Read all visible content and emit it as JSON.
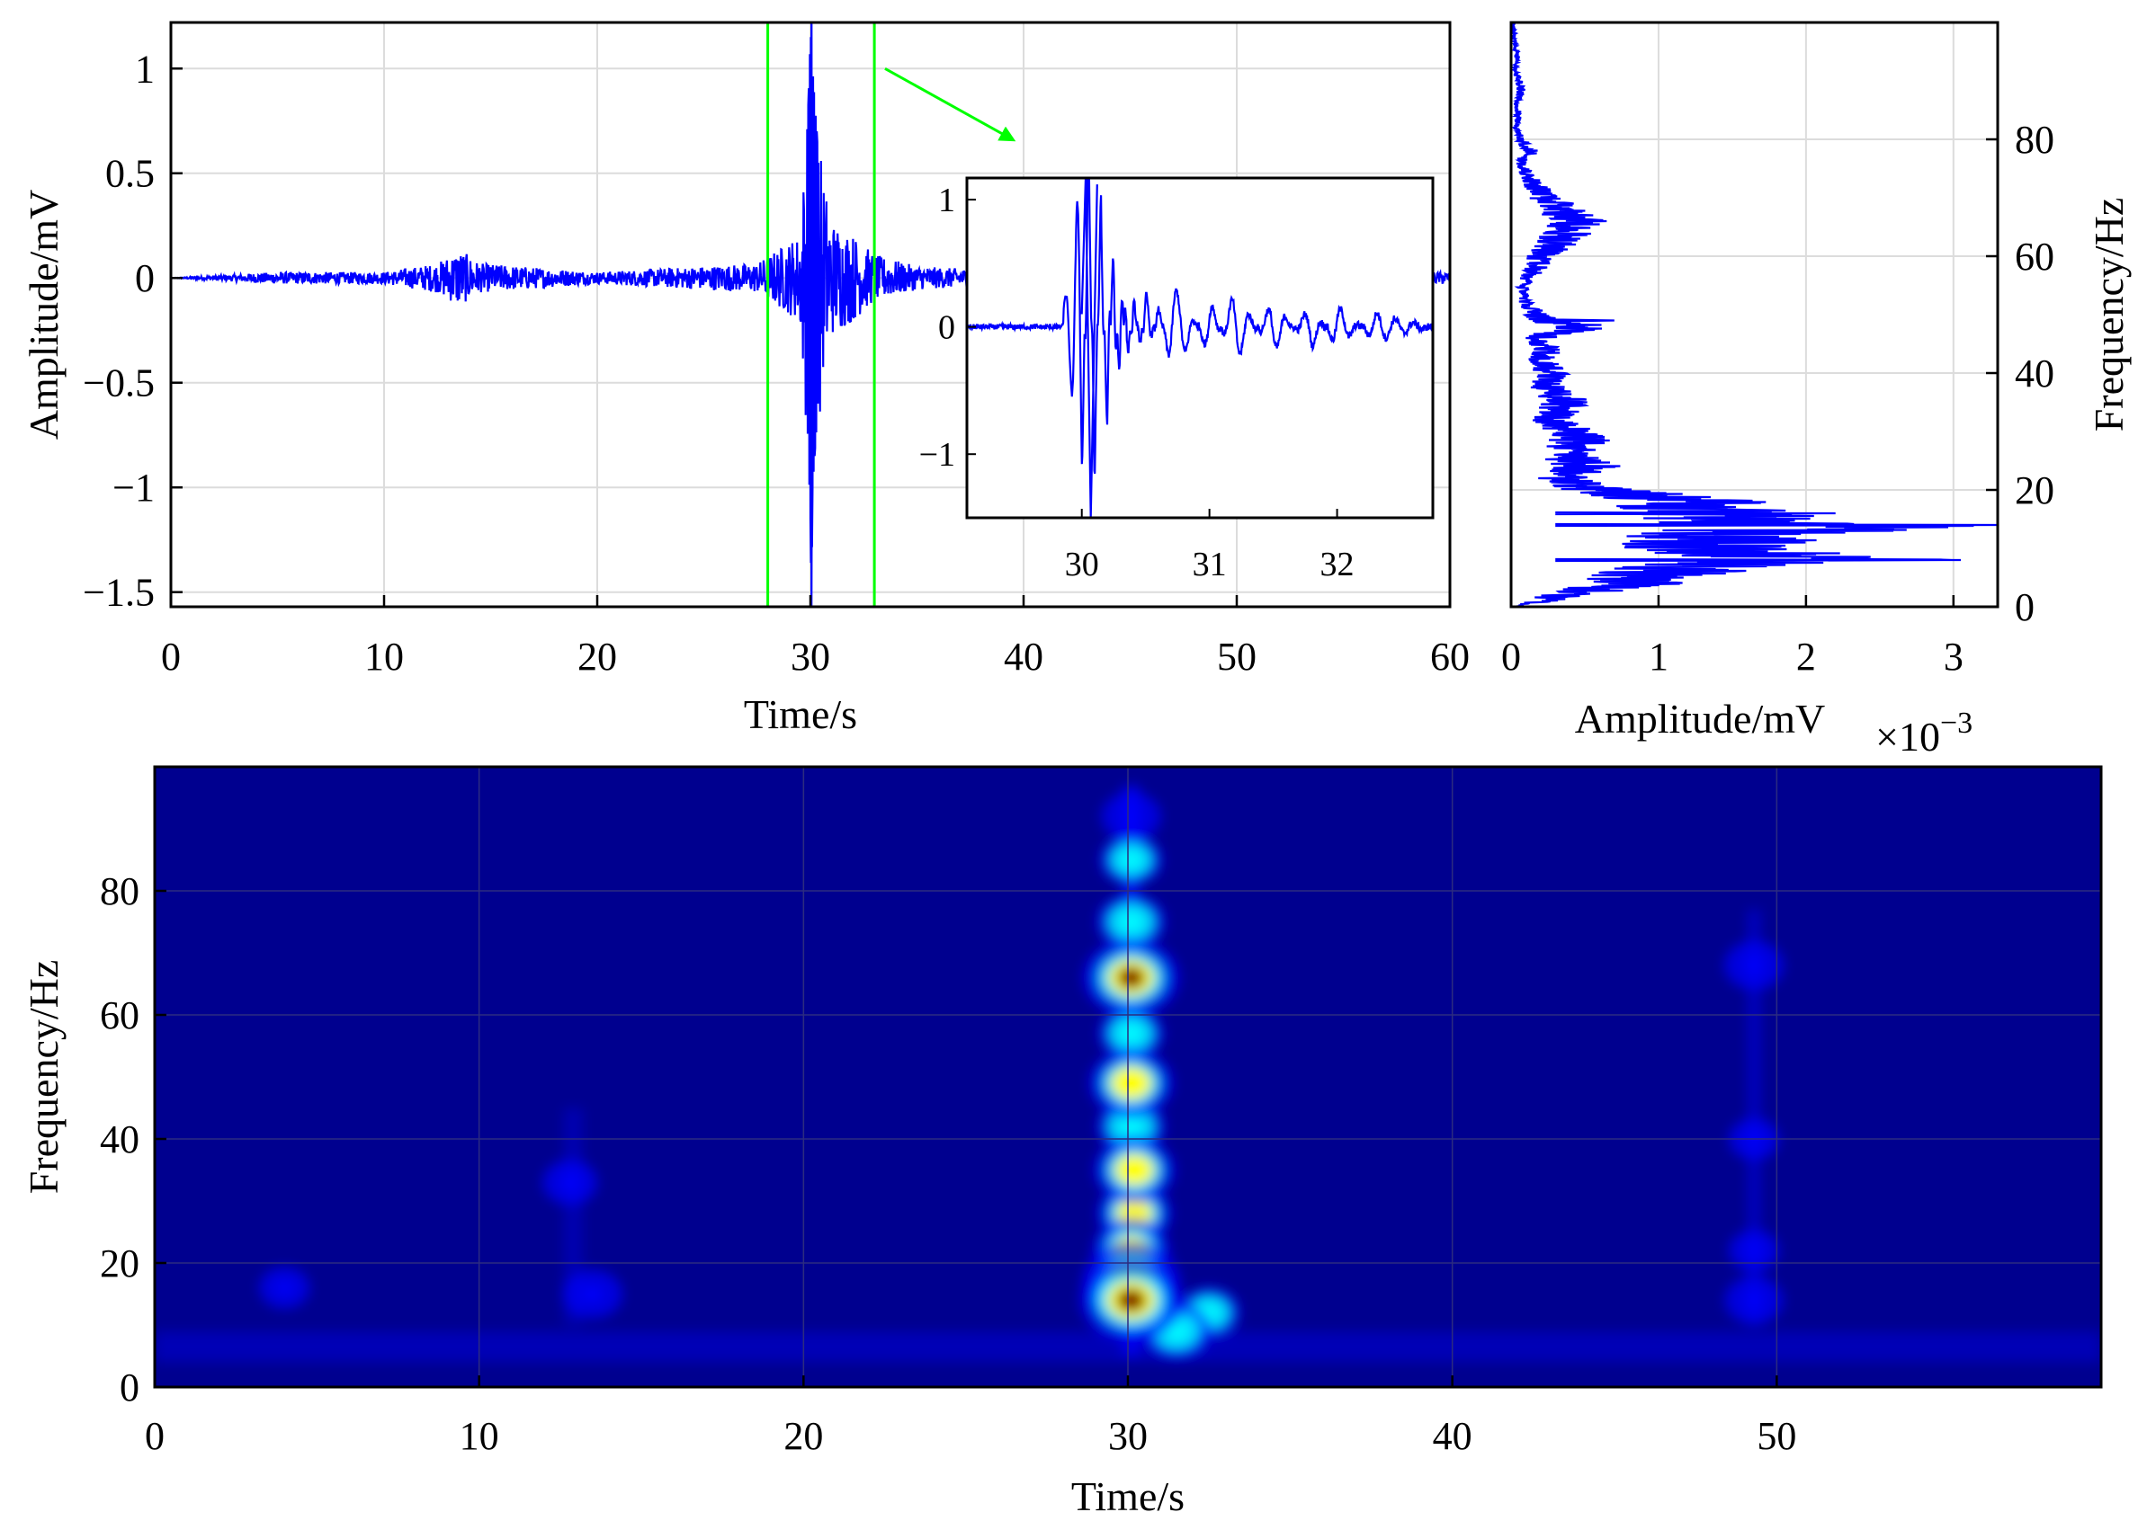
{
  "colors": {
    "signal": "#0000ff",
    "highlight": "#00ff00",
    "spectrogram_background": "#00008f",
    "colormap": [
      "#00008f",
      "#0000ff",
      "#00ffff",
      "#ffff00",
      "#ff0000",
      "#800000"
    ]
  },
  "chart_data": [
    {
      "id": "time-domain",
      "type": "line",
      "xlabel": "Time/s",
      "ylabel": "Amplitude/mV",
      "xlim": [
        0,
        60
      ],
      "ylim": [
        -1.57,
        1.22
      ],
      "xticks": [
        "0",
        "10",
        "20",
        "30",
        "40",
        "50",
        "60"
      ],
      "yticks": [
        "1",
        "0.5",
        "0",
        "−0.5",
        "−1",
        "−1.5"
      ],
      "grid": true,
      "series": [
        {
          "x": [
            0,
            5,
            10,
            12.5,
            13.5,
            14.5,
            20,
            27.5,
            29.5,
            29.8,
            30.0,
            30.05,
            30.1,
            30.2,
            30.3,
            30.4,
            30.6,
            31,
            32,
            33,
            35,
            40,
            45,
            50,
            55,
            60
          ],
          "y": [
            0,
            0.02,
            0.02,
            0.05,
            0.1,
            0.05,
            0.02,
            0.05,
            0.15,
            0.5,
            1.15,
            -1.57,
            1.0,
            -0.85,
            0.7,
            -0.5,
            0.35,
            0.2,
            0.15,
            0.08,
            0.04,
            0.02,
            0.02,
            0.03,
            0.02,
            0.02
          ]
        }
      ],
      "annotations": [
        {
          "kind": "highlight-rectangle",
          "x_range": [
            28,
            33
          ],
          "y_range": [
            -1.57,
            1.22
          ]
        },
        {
          "kind": "arrow",
          "from": [
            33.5,
            1.0
          ],
          "to": [
            39.5,
            0.66
          ]
        }
      ]
    },
    {
      "id": "zoom-inset",
      "type": "line",
      "xlim": [
        29.1,
        32.75
      ],
      "ylim": [
        -1.5,
        1.17
      ],
      "xticks": [
        "30",
        "31",
        "32"
      ],
      "yticks": [
        "1",
        "0",
        "−1"
      ],
      "grid": false,
      "series": [
        {
          "x": [
            29.1,
            29.5,
            29.8,
            29.9,
            30.0,
            30.05,
            30.1,
            30.15,
            30.2,
            30.25,
            30.3,
            30.35,
            30.4,
            30.45,
            30.5,
            30.6,
            30.7,
            30.8,
            31.0,
            31.2,
            31.5,
            31.8,
            32.0,
            32.3,
            32.5,
            32.75
          ],
          "y": [
            0,
            0,
            0.05,
            0.3,
            1.2,
            -1.5,
            1.15,
            -1.0,
            0.85,
            -0.75,
            0.6,
            -0.4,
            0.3,
            -0.2,
            0.25,
            -0.15,
            0.3,
            0.2,
            -0.2,
            0.25,
            -0.18,
            0.15,
            -0.15,
            0.1,
            0.05,
            0
          ]
        }
      ]
    },
    {
      "id": "spectrum",
      "type": "line",
      "xlabel": "Amplitude/mV",
      "ylabel": "Frequency/Hz",
      "x_multiplier": "×10",
      "x_multiplier_exponent": "−3",
      "xlim": [
        0,
        3.3
      ],
      "ylim": [
        0,
        100
      ],
      "xticks": [
        "0",
        "1",
        "2",
        "3"
      ],
      "yticks": [
        "0",
        "20",
        "40",
        "60",
        "80"
      ],
      "grid": true,
      "series": [
        {
          "y": [
            0,
            2,
            4,
            6,
            7,
            8,
            10,
            12,
            13,
            14,
            15,
            16,
            17,
            18,
            20,
            22,
            24,
            26,
            28,
            30,
            32,
            35,
            38,
            40,
            42,
            44,
            46,
            48,
            49,
            50,
            52,
            55,
            58,
            60,
            62,
            64,
            66,
            67,
            68,
            70,
            72,
            74,
            76,
            78,
            80,
            82,
            84,
            86,
            88,
            90,
            92,
            94,
            96,
            98,
            100
          ],
          "x": [
            0.05,
            0.55,
            1.2,
            1.6,
            1.8,
            3.05,
            1.8,
            2.2,
            2.6,
            3.3,
            2.3,
            1.85,
            1.9,
            1.75,
            0.9,
            0.5,
            0.75,
            0.55,
            0.7,
            0.6,
            0.4,
            0.55,
            0.35,
            0.45,
            0.3,
            0.35,
            0.28,
            0.7,
            0.35,
            0.25,
            0.15,
            0.12,
            0.25,
            0.3,
            0.45,
            0.55,
            0.65,
            0.6,
            0.5,
            0.35,
            0.25,
            0.15,
            0.1,
            0.2,
            0.1,
            0.05,
            0.08,
            0.05,
            0.1,
            0.08,
            0.04,
            0.06,
            0.04,
            0.03,
            0.02
          ]
        }
      ]
    },
    {
      "id": "spectrogram",
      "type": "heatmap",
      "xlabel": "Time/s",
      "ylabel": "Frequency/Hz",
      "xlim": [
        0,
        60
      ],
      "ylim": [
        0,
        100
      ],
      "xticks": [
        "0",
        "10",
        "20",
        "30",
        "40",
        "50"
      ],
      "yticks": [
        "0",
        "20",
        "40",
        "60",
        "80"
      ],
      "hotspots": [
        {
          "t": 30.1,
          "f": 14,
          "level": 1.0
        },
        {
          "t": 30.1,
          "f": 17,
          "level": 0.92
        },
        {
          "t": 30.1,
          "f": 66,
          "level": 0.9
        },
        {
          "t": 30.1,
          "f": 49,
          "level": 0.7
        },
        {
          "t": 30.2,
          "f": 35,
          "level": 0.65
        },
        {
          "t": 30.2,
          "f": 28,
          "level": 0.55
        },
        {
          "t": 30.1,
          "f": 22,
          "level": 0.6
        },
        {
          "t": 30.1,
          "f": 75,
          "level": 0.45
        },
        {
          "t": 30.1,
          "f": 85,
          "level": 0.35
        },
        {
          "t": 30.1,
          "f": 92,
          "level": 0.3
        },
        {
          "t": 30.1,
          "f": 57,
          "level": 0.4
        },
        {
          "t": 30.1,
          "f": 42,
          "level": 0.45
        },
        {
          "t": 31.5,
          "f": 9,
          "level": 0.45
        },
        {
          "t": 32.5,
          "f": 12,
          "level": 0.35
        },
        {
          "t": 13.5,
          "f": 15,
          "level": 0.3
        },
        {
          "t": 12.8,
          "f": 33,
          "level": 0.22
        },
        {
          "t": 49.3,
          "f": 68,
          "level": 0.3
        },
        {
          "t": 49.3,
          "f": 14,
          "level": 0.28
        },
        {
          "t": 49.3,
          "f": 40,
          "level": 0.15
        },
        {
          "t": 49.3,
          "f": 22,
          "level": 0.15
        },
        {
          "t": 4,
          "f": 16,
          "level": 0.15
        }
      ]
    }
  ]
}
